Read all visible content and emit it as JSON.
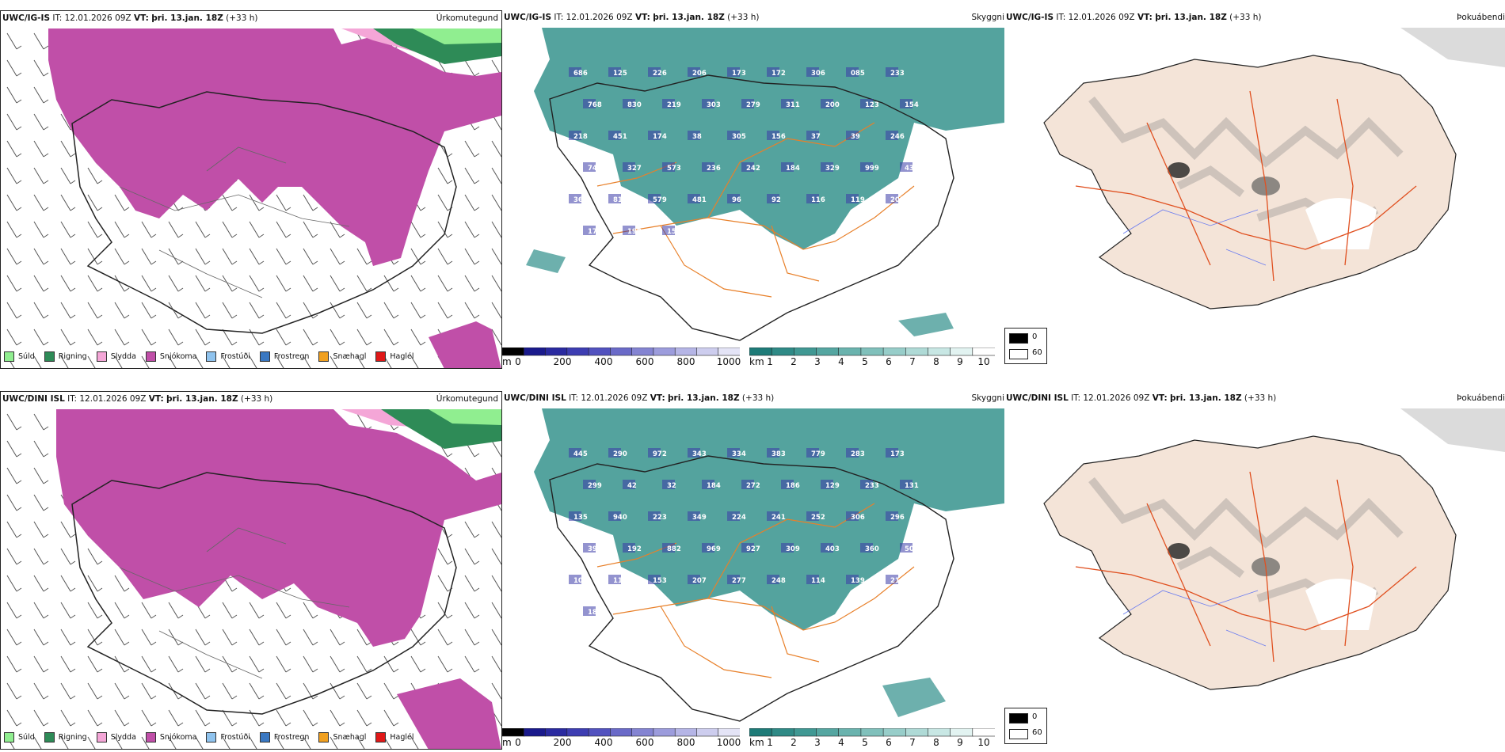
{
  "rows": [
    {
      "model": "UWC/IG-IS",
      "it_label": "IT:",
      "it": "12.01.2026 09Z",
      "vt_label": "VT:",
      "vt": "þri. 13.jan. 18Z",
      "lead": "(+33 h)",
      "ceiling_values": [
        "686",
        "125",
        "226",
        "206",
        "173",
        "172",
        "306",
        "085",
        "233",
        "768",
        "830",
        "219",
        "303",
        "279",
        "311",
        "200",
        "123",
        "154",
        "218",
        "451",
        "174",
        "38",
        "305",
        "156",
        "37",
        "39",
        "246",
        "744",
        "327",
        "573",
        "236",
        "242",
        "184",
        "329",
        "999",
        "439",
        "366",
        "81",
        "579",
        "481",
        "96",
        "92",
        "116",
        "119",
        "205",
        "174",
        "198",
        "15"
      ]
    },
    {
      "model": "UWC/DINI ISL",
      "it_label": "IT:",
      "it": "12.01.2026 09Z",
      "vt_label": "VT:",
      "vt": "þri. 13.jan. 18Z",
      "lead": "(+33 h)",
      "ceiling_values": [
        "445",
        "290",
        "972",
        "343",
        "334",
        "383",
        "779",
        "283",
        "173",
        "299",
        "42",
        "32",
        "184",
        "272",
        "186",
        "129",
        "233",
        "131",
        "135",
        "940",
        "223",
        "349",
        "224",
        "241",
        "252",
        "306",
        "296",
        "398",
        "192",
        "882",
        "969",
        "927",
        "309",
        "403",
        "360",
        "507",
        "104",
        "115",
        "153",
        "207",
        "277",
        "248",
        "114",
        "139",
        "214",
        "18"
      ]
    }
  ],
  "fields": {
    "precip": "Úrkomutegund",
    "ceiling": "Skyggni",
    "fog": "Þokuábendi"
  },
  "precip_legend": [
    {
      "label": "Súld",
      "color": "#90ee90"
    },
    {
      "label": "Rigning",
      "color": "#2e8b57"
    },
    {
      "label": "Slydda",
      "color": "#f4a6d7"
    },
    {
      "label": "Snjókoma",
      "color": "#c04fa8"
    },
    {
      "label": "Frostúði",
      "color": "#8fc3ee"
    },
    {
      "label": "Frostregn",
      "color": "#3a78c2"
    },
    {
      "label": "Snæhagl",
      "color": "#f0a020"
    },
    {
      "label": "Haglél",
      "color": "#e01818"
    }
  ],
  "ceiling_scale": {
    "unit": "m",
    "ticks": [
      "0",
      "200",
      "400",
      "600",
      "800",
      "1000"
    ],
    "colors": [
      "#000000",
      "#1a1a8c",
      "#2a2aa0",
      "#3d3db2",
      "#5252bf",
      "#6a6ac8",
      "#8484d2",
      "#9c9cdc",
      "#b5b5e6",
      "#cdcdee",
      "#e4e4f6"
    ]
  },
  "visibility_scale": {
    "unit": "km",
    "ticks": [
      "1",
      "2",
      "3",
      "4",
      "5",
      "6",
      "7",
      "8",
      "9",
      "10"
    ],
    "colors": [
      "#1e7b78",
      "#2f8a86",
      "#409893",
      "#55a6a1",
      "#6ab3ae",
      "#80c0bb",
      "#97cdc9",
      "#afdad6",
      "#c8e7e4",
      "#e2f3f1",
      "#ffffff"
    ]
  },
  "fog_legend": {
    "dark": "0",
    "light": "60"
  },
  "colors": {
    "snow": "#c04fa8",
    "rain": "#2e8b57",
    "drizzle": "#90ee90",
    "sleet": "#f4a6d7",
    "teal": "#3c9691",
    "roads": "#e8802a",
    "land_fog": "#f4e4d8"
  }
}
